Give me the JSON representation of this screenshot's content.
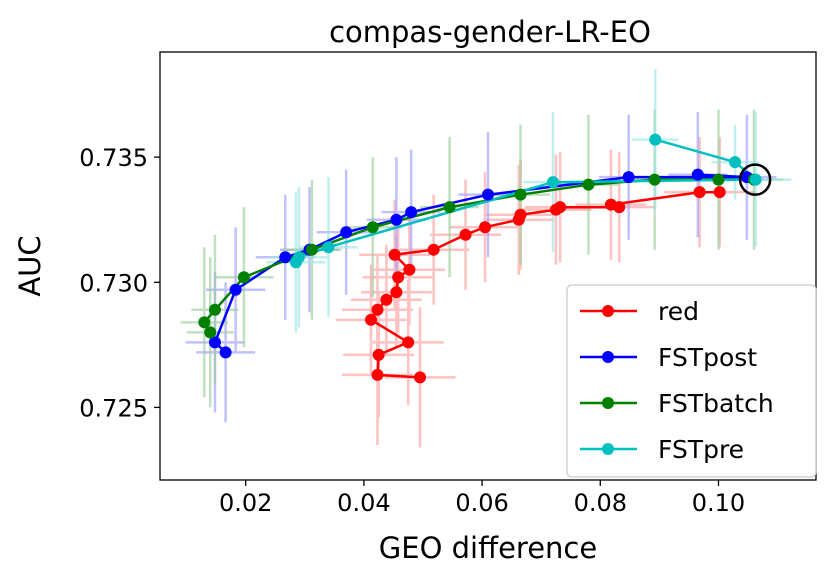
{
  "chart_data": {
    "type": "scatter",
    "title": "compas-gender-LR-EO",
    "xlabel": "GEO difference",
    "ylabel": "AUC",
    "xlim": [
      0.0055,
      0.1165
    ],
    "ylim": [
      0.7221,
      0.7392
    ],
    "xticks": [
      0.02,
      0.04,
      0.06,
      0.08,
      0.1
    ],
    "xtick_labels": [
      "0.02",
      "0.04",
      "0.06",
      "0.08",
      "0.10"
    ],
    "yticks": [
      0.725,
      0.73,
      0.735
    ],
    "ytick_labels": [
      "0.725",
      "0.730",
      "0.735"
    ],
    "legend_position": "lower-right",
    "highlight": {
      "name": "reference-point",
      "x": 0.1062,
      "y": 0.7341
    },
    "series": [
      {
        "name": "red",
        "color": "#ff0000",
        "error_color": "#ff9999",
        "points": [
          {
            "x": 0.0495,
            "y": 0.7262,
            "xerr": 0.006,
            "yerr": 0.0028
          },
          {
            "x": 0.0423,
            "y": 0.7263,
            "xerr": 0.006,
            "yerr": 0.0028
          },
          {
            "x": 0.0425,
            "y": 0.7271,
            "xerr": 0.006,
            "yerr": 0.0025
          },
          {
            "x": 0.0475,
            "y": 0.7276,
            "xerr": 0.006,
            "yerr": 0.0025
          },
          {
            "x": 0.0412,
            "y": 0.7285,
            "xerr": 0.006,
            "yerr": 0.0022
          },
          {
            "x": 0.0423,
            "y": 0.7289,
            "xerr": 0.006,
            "yerr": 0.0022
          },
          {
            "x": 0.0438,
            "y": 0.7293,
            "xerr": 0.006,
            "yerr": 0.0022
          },
          {
            "x": 0.0455,
            "y": 0.7296,
            "xerr": 0.006,
            "yerr": 0.0022
          },
          {
            "x": 0.0458,
            "y": 0.7302,
            "xerr": 0.006,
            "yerr": 0.0022
          },
          {
            "x": 0.0477,
            "y": 0.7305,
            "xerr": 0.006,
            "yerr": 0.0022
          },
          {
            "x": 0.0452,
            "y": 0.7311,
            "xerr": 0.006,
            "yerr": 0.0022
          },
          {
            "x": 0.0518,
            "y": 0.7313,
            "xerr": 0.006,
            "yerr": 0.0022
          },
          {
            "x": 0.0572,
            "y": 0.7319,
            "xerr": 0.006,
            "yerr": 0.0022
          },
          {
            "x": 0.0605,
            "y": 0.7322,
            "xerr": 0.006,
            "yerr": 0.0022
          },
          {
            "x": 0.0662,
            "y": 0.7325,
            "xerr": 0.006,
            "yerr": 0.0022
          },
          {
            "x": 0.0665,
            "y": 0.7327,
            "xerr": 0.006,
            "yerr": 0.0022
          },
          {
            "x": 0.0725,
            "y": 0.7329,
            "xerr": 0.006,
            "yerr": 0.0022
          },
          {
            "x": 0.0732,
            "y": 0.733,
            "xerr": 0.006,
            "yerr": 0.0022
          },
          {
            "x": 0.0818,
            "y": 0.7331,
            "xerr": 0.006,
            "yerr": 0.0022
          },
          {
            "x": 0.0832,
            "y": 0.733,
            "xerr": 0.006,
            "yerr": 0.0022
          },
          {
            "x": 0.0968,
            "y": 0.7336,
            "xerr": 0.006,
            "yerr": 0.0022
          },
          {
            "x": 0.1002,
            "y": 0.7336,
            "xerr": 0.006,
            "yerr": 0.0022
          }
        ]
      },
      {
        "name": "FSTpost",
        "color": "#0000ff",
        "error_color": "#9999ff",
        "points": [
          {
            "x": 0.0166,
            "y": 0.7272,
            "xerr": 0.005,
            "yerr": 0.0028
          },
          {
            "x": 0.0148,
            "y": 0.7276,
            "xerr": 0.005,
            "yerr": 0.0028
          },
          {
            "x": 0.0183,
            "y": 0.7297,
            "xerr": 0.005,
            "yerr": 0.0025
          },
          {
            "x": 0.0267,
            "y": 0.731,
            "xerr": 0.005,
            "yerr": 0.0025
          },
          {
            "x": 0.0308,
            "y": 0.7313,
            "xerr": 0.005,
            "yerr": 0.0025
          },
          {
            "x": 0.037,
            "y": 0.732,
            "xerr": 0.005,
            "yerr": 0.0025
          },
          {
            "x": 0.0455,
            "y": 0.7325,
            "xerr": 0.005,
            "yerr": 0.0025
          },
          {
            "x": 0.048,
            "y": 0.7328,
            "xerr": 0.005,
            "yerr": 0.0025
          },
          {
            "x": 0.061,
            "y": 0.7335,
            "xerr": 0.005,
            "yerr": 0.0025
          },
          {
            "x": 0.0848,
            "y": 0.7342,
            "xerr": 0.005,
            "yerr": 0.0025
          },
          {
            "x": 0.0965,
            "y": 0.7343,
            "xerr": 0.005,
            "yerr": 0.0025
          },
          {
            "x": 0.1048,
            "y": 0.7342,
            "xerr": 0.005,
            "yerr": 0.0025
          }
        ]
      },
      {
        "name": "FSTbatch",
        "color": "#008000",
        "error_color": "#99cc99",
        "points": [
          {
            "x": 0.013,
            "y": 0.7284,
            "xerr": 0.004,
            "yerr": 0.003
          },
          {
            "x": 0.014,
            "y": 0.728,
            "xerr": 0.004,
            "yerr": 0.003
          },
          {
            "x": 0.0148,
            "y": 0.7289,
            "xerr": 0.004,
            "yerr": 0.003
          },
          {
            "x": 0.0197,
            "y": 0.7302,
            "xerr": 0.005,
            "yerr": 0.0028
          },
          {
            "x": 0.0312,
            "y": 0.7313,
            "xerr": 0.005,
            "yerr": 0.0028
          },
          {
            "x": 0.0415,
            "y": 0.7322,
            "xerr": 0.005,
            "yerr": 0.0028
          },
          {
            "x": 0.0545,
            "y": 0.733,
            "xerr": 0.005,
            "yerr": 0.0028
          },
          {
            "x": 0.0665,
            "y": 0.7335,
            "xerr": 0.005,
            "yerr": 0.0028
          },
          {
            "x": 0.078,
            "y": 0.7339,
            "xerr": 0.005,
            "yerr": 0.0028
          },
          {
            "x": 0.0892,
            "y": 0.7341,
            "xerr": 0.005,
            "yerr": 0.0028
          },
          {
            "x": 0.1,
            "y": 0.7341,
            "xerr": 0.005,
            "yerr": 0.0028
          },
          {
            "x": 0.106,
            "y": 0.7341,
            "xerr": 0.005,
            "yerr": 0.0028
          }
        ]
      },
      {
        "name": "FSTpre",
        "color": "#00bfbf",
        "error_color": "#99e6e6",
        "points": [
          {
            "x": 0.0285,
            "y": 0.7308,
            "xerr": 0.005,
            "yerr": 0.0028
          },
          {
            "x": 0.029,
            "y": 0.731,
            "xerr": 0.005,
            "yerr": 0.0028
          },
          {
            "x": 0.034,
            "y": 0.7314,
            "xerr": 0.005,
            "yerr": 0.0028
          },
          {
            "x": 0.072,
            "y": 0.734,
            "xerr": 0.005,
            "yerr": 0.0028
          },
          {
            "x": 0.0893,
            "y": 0.7357,
            "xerr": 0.004,
            "yerr": 0.0028
          },
          {
            "x": 0.1028,
            "y": 0.7348,
            "xerr": 0.004,
            "yerr": 0.0015
          },
          {
            "x": 0.1063,
            "y": 0.7341,
            "xerr": 0.006,
            "yerr": 0.0027
          }
        ]
      }
    ]
  }
}
